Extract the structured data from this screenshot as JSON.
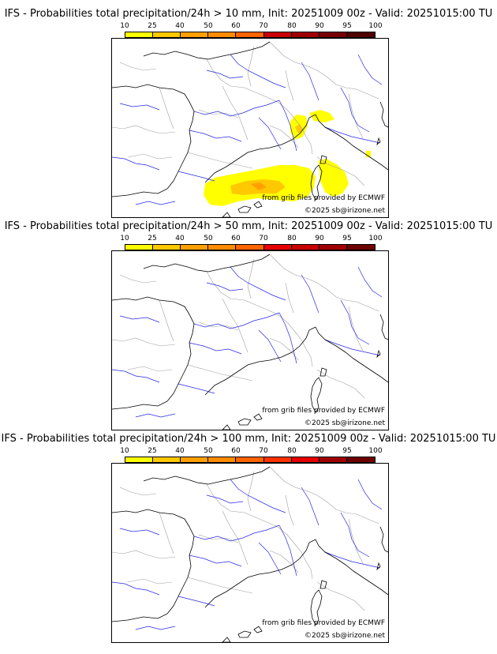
{
  "panels": [
    {
      "title": "IFS - Probabilities total precipitation/24h > 10 mm, Init: 20251009 00z - Valid: 20251015:00 TU",
      "legend": {
        "labels": [
          "10",
          "25",
          "40",
          "50",
          "60",
          "70",
          "80",
          "90",
          "95",
          "100"
        ],
        "colors": [
          "#ffff00",
          "#ffc800",
          "#ffa000",
          "#ff8c00",
          "#ff6400",
          "#c80000",
          "#a00000",
          "#780000",
          "#500000"
        ]
      },
      "credit_source": "from grib files provided by ECMWF",
      "credit_copyright": "©2025 sb@irizone.net",
      "has_precip_area": true
    },
    {
      "title": "IFS - Probabilities total precipitation/24h > 50 mm, Init: 20251009 00z - Valid: 20251015:00 TU",
      "legend": {
        "labels": [
          "10",
          "25",
          "40",
          "50",
          "60",
          "70",
          "80",
          "90",
          "95",
          "100"
        ],
        "colors": [
          "#ffff00",
          "#ffc800",
          "#ffa000",
          "#ff8c00",
          "#ff6400",
          "#e60000",
          "#c80000",
          "#a00000",
          "#6e0000"
        ]
      },
      "credit_source": "from grib files provided by ECMWF",
      "credit_copyright": "©2025 sb@irizone.net",
      "has_precip_area": false
    },
    {
      "title": "IFS - Probabilities total precipitation/24h > 100 mm, Init: 20251009 00z - Valid: 20251015:00 TU",
      "legend": {
        "labels": [
          "10",
          "25",
          "40",
          "50",
          "60",
          "70",
          "80",
          "90",
          "95",
          "100"
        ],
        "colors": [
          "#ffff00",
          "#ffc800",
          "#ffa000",
          "#ff8c00",
          "#ff6400",
          "#ff3200",
          "#e60000",
          "#a00000",
          "#6e0000"
        ]
      },
      "credit_source": "from grib files provided by ECMWF",
      "credit_copyright": "©2025 sb@irizone.net",
      "has_precip_area": false
    }
  ],
  "colors": {
    "coastline": "#000000",
    "borders": "#a0a0a0",
    "rivers": "#2828e6"
  }
}
